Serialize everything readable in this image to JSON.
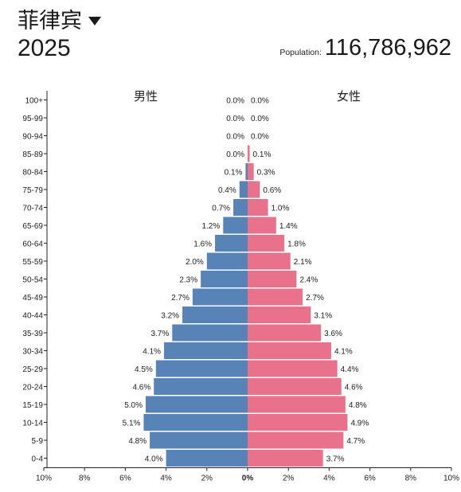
{
  "header": {
    "country": "菲律宾",
    "year": "2025",
    "population_label": "Population:",
    "population_value": "116,786,962"
  },
  "colors": {
    "male": "#5783b6",
    "female": "#e8718c"
  },
  "chart_data": {
    "type": "bar",
    "orientation": "horizontal-diverging",
    "series_labels": {
      "male": "男性",
      "female": "女性"
    },
    "categories": [
      "100+",
      "95-99",
      "90-94",
      "85-89",
      "80-84",
      "75-79",
      "70-74",
      "65-69",
      "60-64",
      "55-59",
      "50-54",
      "45-49",
      "40-44",
      "35-39",
      "30-34",
      "25-29",
      "20-24",
      "15-19",
      "10-14",
      "5-9",
      "0-4"
    ],
    "series": [
      {
        "name": "男性",
        "values": [
          0.0,
          0.0,
          0.0,
          0.0,
          0.1,
          0.4,
          0.7,
          1.2,
          1.6,
          2.0,
          2.3,
          2.7,
          3.2,
          3.7,
          4.1,
          4.5,
          4.6,
          5.0,
          5.1,
          4.8,
          4.0
        ],
        "labels": [
          "0.0%",
          "0.0%",
          "0.0%",
          "0.0%",
          "0.1%",
          "0.4%",
          "0.7%",
          "1.2%",
          "1.6%",
          "2.0%",
          "2.3%",
          "2.7%",
          "3.2%",
          "3.7%",
          "4.1%",
          "4.5%",
          "4.6%",
          "5.0%",
          "5.1%",
          "4.8%",
          "4.0%"
        ]
      },
      {
        "name": "女性",
        "values": [
          0.0,
          0.0,
          0.0,
          0.1,
          0.3,
          0.6,
          1.0,
          1.4,
          1.8,
          2.1,
          2.4,
          2.7,
          3.1,
          3.6,
          4.1,
          4.4,
          4.6,
          4.8,
          4.9,
          4.7,
          3.7
        ],
        "labels": [
          "0.0%",
          "0.0%",
          "0.0%",
          "0.1%",
          "0.3%",
          "0.6%",
          "1.0%",
          "1.4%",
          "1.8%",
          "2.1%",
          "2.4%",
          "2.7%",
          "3.1%",
          "3.6%",
          "4.1%",
          "4.4%",
          "4.6%",
          "4.8%",
          "4.9%",
          "4.7%",
          "3.7%"
        ]
      }
    ],
    "x_ticks": [
      "10%",
      "8%",
      "6%",
      "4%",
      "2%",
      "0%",
      "2%",
      "4%",
      "6%",
      "8%",
      "10%"
    ],
    "xlim": [
      -10,
      10
    ]
  }
}
